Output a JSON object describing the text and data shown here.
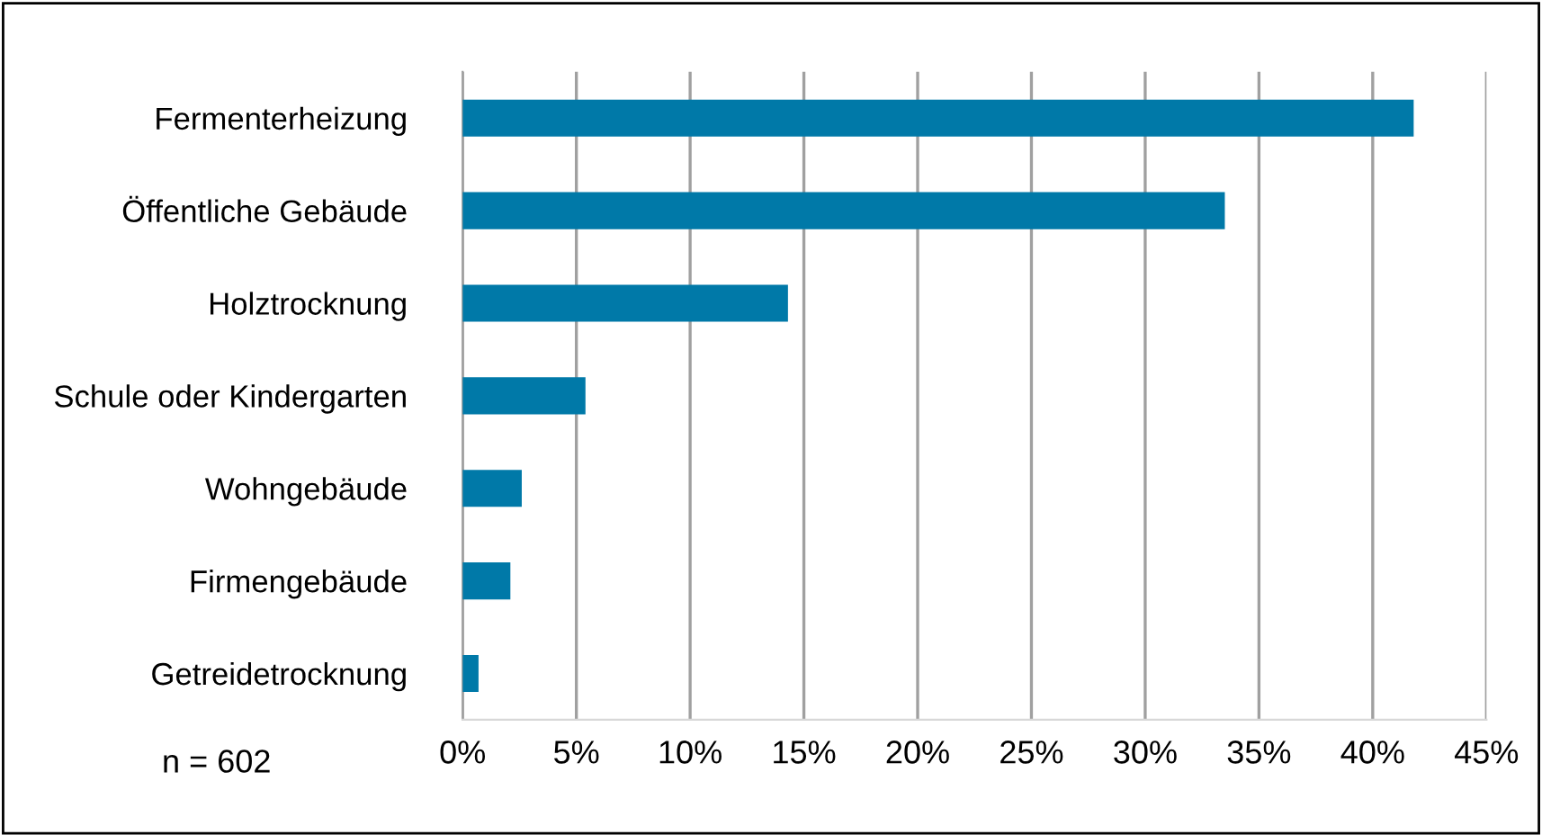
{
  "chart_data": {
    "type": "bar",
    "orientation": "horizontal",
    "categories": [
      "Fermenterheizung",
      "Öffentliche Gebäude",
      "Holztrocknung",
      "Schule oder Kindergarten",
      "Wohngebäude",
      "Firmengebäude",
      "Getreidetrocknung"
    ],
    "values": [
      41.8,
      33.5,
      14.3,
      5.4,
      2.6,
      2.1,
      0.7
    ],
    "color": "#0079a8",
    "xlim": [
      0,
      45
    ],
    "xticks": [
      {
        "value": 0,
        "label": "0%"
      },
      {
        "value": 5,
        "label": "5%"
      },
      {
        "value": 10,
        "label": "10%"
      },
      {
        "value": 15,
        "label": "15%"
      },
      {
        "value": 20,
        "label": "20%"
      },
      {
        "value": 25,
        "label": "25%"
      },
      {
        "value": 30,
        "label": "30%"
      },
      {
        "value": 35,
        "label": "35%"
      },
      {
        "value": 40,
        "label": "40%"
      },
      {
        "value": 45,
        "label": "45%"
      }
    ],
    "grid": "x",
    "annotations": [
      "n = 602"
    ]
  }
}
